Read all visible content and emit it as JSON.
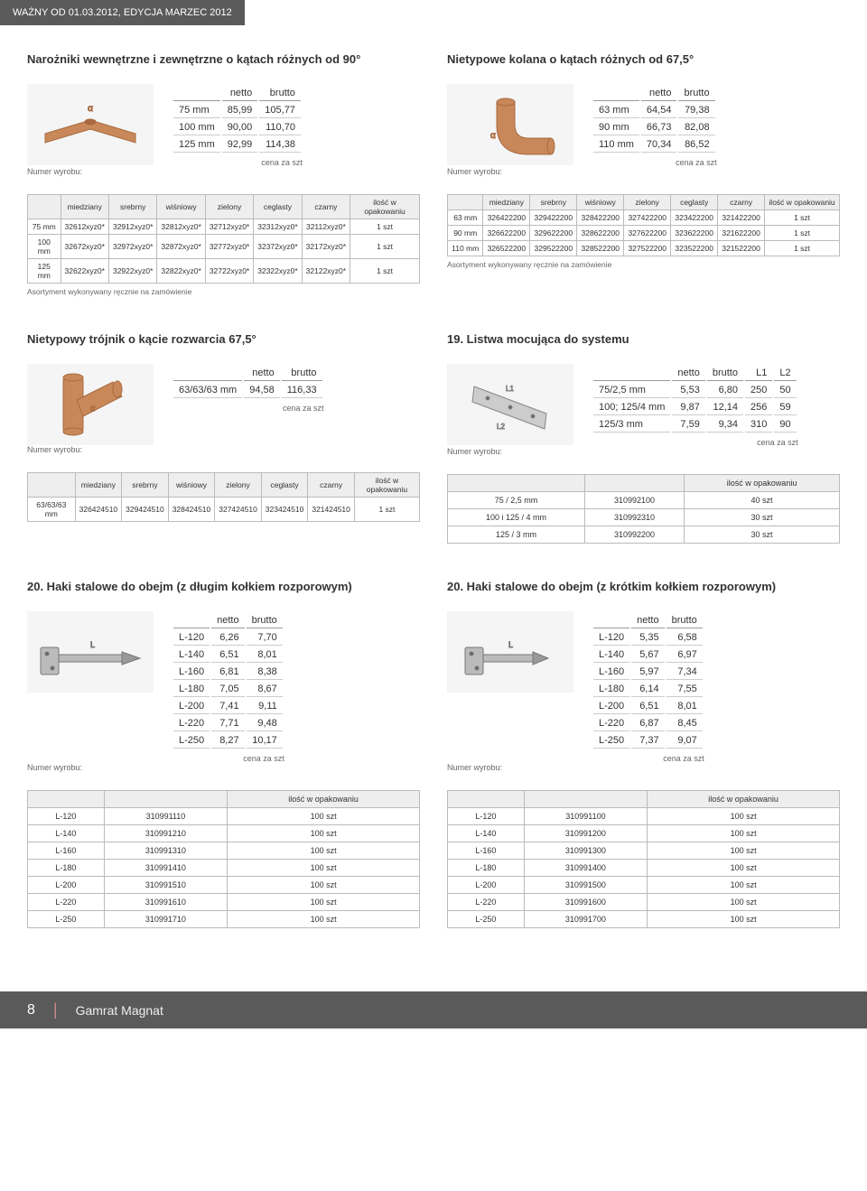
{
  "header": {
    "text": "WAŻNY OD 01.03.2012, EDYCJA MARZEC 2012"
  },
  "sections": {
    "s1": {
      "title": "Narożniki wewnętrzne i zewnętrzne o kątach różnych od 90°",
      "price_headers": [
        "",
        "netto",
        "brutto"
      ],
      "price_rows": [
        [
          "75 mm",
          "85,99",
          "105,77"
        ],
        [
          "100 mm",
          "90,00",
          "110,70"
        ],
        [
          "125 mm",
          "92,99",
          "114,38"
        ]
      ],
      "price_note": "cena za szt",
      "code_label": "Numer wyrobu:",
      "code_headers": [
        "",
        "miedziany",
        "srebrny",
        "wiśniowy",
        "zielony",
        "ceglasty",
        "czarny",
        "ilość w opakowaniu"
      ],
      "code_rows": [
        [
          "75 mm",
          "32612xyz0*",
          "32912xyz0*",
          "32812xyz0*",
          "32712xyz0*",
          "32312xyz0*",
          "32112xyz0*",
          "1 szt"
        ],
        [
          "100 mm",
          "32672xyz0*",
          "32972xyz0*",
          "32872xyz0*",
          "32772xyz0*",
          "32372xyz0*",
          "32172xyz0*",
          "1 szt"
        ],
        [
          "125 mm",
          "32622xyz0*",
          "32922xyz0*",
          "32822xyz0*",
          "32722xyz0*",
          "32322xyz0*",
          "32122xyz0*",
          "1 szt"
        ]
      ],
      "note": "Asortyment wykonywany ręcznie na zamówienie"
    },
    "s2": {
      "title": "Nietypowe kolana o kątach różnych od 67,5°",
      "price_headers": [
        "",
        "netto",
        "brutto"
      ],
      "price_rows": [
        [
          "63 mm",
          "64,54",
          "79,38"
        ],
        [
          "90 mm",
          "66,73",
          "82,08"
        ],
        [
          "110 mm",
          "70,34",
          "86,52"
        ]
      ],
      "price_note": "cena za szt",
      "code_label": "Numer wyrobu:",
      "code_headers": [
        "",
        "miedziany",
        "srebrny",
        "wiśniowy",
        "zielony",
        "ceglasty",
        "czarny",
        "ilość w opakowaniu"
      ],
      "code_rows": [
        [
          "63 mm",
          "326422200",
          "329422200",
          "328422200",
          "327422200",
          "323422200",
          "321422200",
          "1 szt"
        ],
        [
          "90 mm",
          "326622200",
          "329622200",
          "328622200",
          "327622200",
          "323622200",
          "321622200",
          "1 szt"
        ],
        [
          "110 mm",
          "326522200",
          "329522200",
          "328522200",
          "327522200",
          "323522200",
          "321522200",
          "1 szt"
        ]
      ],
      "note": "Asortyment wykonywany ręcznie na zamówienie"
    },
    "s3": {
      "title": "Nietypowy trójnik o kącie rozwarcia 67,5°",
      "price_headers": [
        "",
        "netto",
        "brutto"
      ],
      "price_rows": [
        [
          "63/63/63 mm",
          "94,58",
          "116,33"
        ]
      ],
      "price_note": "cena za szt",
      "code_label": "Numer wyrobu:",
      "code_headers": [
        "",
        "miedziany",
        "srebrny",
        "wiśniowy",
        "zielony",
        "ceglasty",
        "czarny",
        "ilość w opakowaniu"
      ],
      "code_rows": [
        [
          "63/63/63 mm",
          "326424510",
          "329424510",
          "328424510",
          "327424510",
          "323424510",
          "321424510",
          "1 szt"
        ]
      ]
    },
    "s4": {
      "title": "19. Listwa mocująca do systemu",
      "price_headers": [
        "",
        "netto",
        "brutto",
        "L1",
        "L2"
      ],
      "price_rows": [
        [
          "75/2,5 mm",
          "5,53",
          "6,80",
          "250",
          "50"
        ],
        [
          "100; 125/4 mm",
          "9,87",
          "12,14",
          "256",
          "59"
        ],
        [
          "125/3 mm",
          "7,59",
          "9,34",
          "310",
          "90"
        ]
      ],
      "price_note": "cena za szt",
      "code_label": "Numer wyrobu:",
      "simple_headers": [
        "",
        "",
        "ilość w opakowaniu"
      ],
      "simple_rows": [
        [
          "75 / 2,5 mm",
          "310992100",
          "40 szt"
        ],
        [
          "100 i 125 / 4 mm",
          "310992310",
          "30 szt"
        ],
        [
          "125 / 3 mm",
          "310992200",
          "30 szt"
        ]
      ]
    },
    "s5": {
      "title": "20. Haki stalowe do obejm (z długim kołkiem rozporowym)",
      "price_headers": [
        "",
        "netto",
        "brutto"
      ],
      "price_rows": [
        [
          "L-120",
          "6,26",
          "7,70"
        ],
        [
          "L-140",
          "6,51",
          "8,01"
        ],
        [
          "L-160",
          "6,81",
          "8,38"
        ],
        [
          "L-180",
          "7,05",
          "8,67"
        ],
        [
          "L-200",
          "7,41",
          "9,11"
        ],
        [
          "L-220",
          "7,71",
          "9,48"
        ],
        [
          "L-250",
          "8,27",
          "10,17"
        ]
      ],
      "price_note": "cena za szt",
      "code_label": "Numer wyrobu:",
      "simple_headers": [
        "",
        "",
        "ilość w opakowaniu"
      ],
      "simple_rows": [
        [
          "L-120",
          "310991110",
          "100 szt"
        ],
        [
          "L-140",
          "310991210",
          "100 szt"
        ],
        [
          "L-160",
          "310991310",
          "100 szt"
        ],
        [
          "L-180",
          "310991410",
          "100 szt"
        ],
        [
          "L-200",
          "310991510",
          "100 szt"
        ],
        [
          "L-220",
          "310991610",
          "100 szt"
        ],
        [
          "L-250",
          "310991710",
          "100 szt"
        ]
      ]
    },
    "s6": {
      "title": "20. Haki stalowe do obejm (z krótkim kołkiem rozporowym)",
      "price_headers": [
        "",
        "netto",
        "brutto"
      ],
      "price_rows": [
        [
          "L-120",
          "5,35",
          "6,58"
        ],
        [
          "L-140",
          "5,67",
          "6,97"
        ],
        [
          "L-160",
          "5,97",
          "7,34"
        ],
        [
          "L-180",
          "6,14",
          "7,55"
        ],
        [
          "L-200",
          "6,51",
          "8,01"
        ],
        [
          "L-220",
          "6,87",
          "8,45"
        ],
        [
          "L-250",
          "7,37",
          "9,07"
        ]
      ],
      "price_note": "cena za szt",
      "code_label": "Numer wyrobu:",
      "simple_headers": [
        "",
        "",
        "ilość w opakowaniu"
      ],
      "simple_rows": [
        [
          "L-120",
          "310991100",
          "100 szt"
        ],
        [
          "L-140",
          "310991200",
          "100 szt"
        ],
        [
          "L-160",
          "310991300",
          "100 szt"
        ],
        [
          "L-180",
          "310991400",
          "100 szt"
        ],
        [
          "L-200",
          "310991500",
          "100 szt"
        ],
        [
          "L-220",
          "310991600",
          "100 szt"
        ],
        [
          "L-250",
          "310991700",
          "100 szt"
        ]
      ]
    }
  },
  "footer": {
    "page": "8",
    "title": "Gamrat Magnat"
  },
  "colors": {
    "product": "#c8885a",
    "product_dark": "#a86a3e",
    "steel": "#bbb",
    "steel_dark": "#888"
  }
}
